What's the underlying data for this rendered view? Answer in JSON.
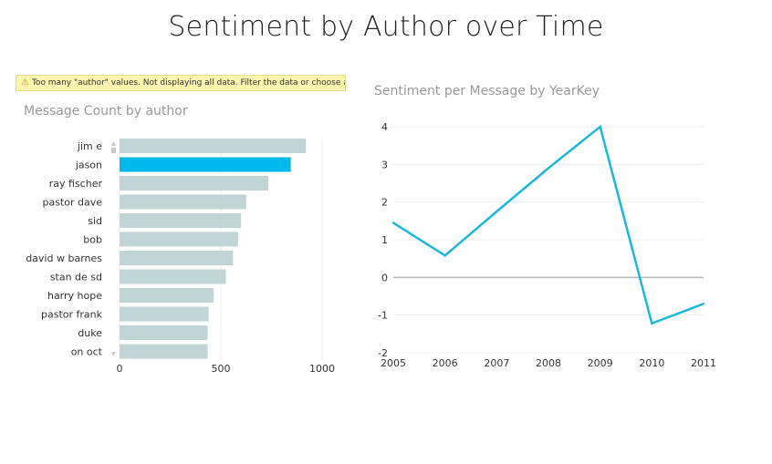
{
  "page": {
    "title": "Sentiment by Author over Time"
  },
  "warning": {
    "icon": "warning-icon",
    "text": "Too many \"author\" values.  Not displaying all data. Filter the data or choose an"
  },
  "colors": {
    "bar_default": "#c2d5d6",
    "bar_highlight": "#00b9ec",
    "line": "#1cb8dc",
    "gridline": "#eeeeee",
    "zero_line": "#b8b8b8"
  },
  "chart_data": [
    {
      "type": "bar",
      "orientation": "horizontal",
      "title": "Message Count by author",
      "categories": [
        "jim e",
        "jason",
        "ray fischer",
        "pastor dave",
        "sid",
        "bob",
        "david w barnes",
        "stan de sd",
        "harry hope",
        "pastor frank",
        "duke",
        "on oct"
      ],
      "values": [
        920,
        845,
        735,
        625,
        600,
        585,
        560,
        525,
        465,
        440,
        435,
        435
      ],
      "highlighted": "jason",
      "xlim": [
        0,
        1000
      ],
      "xticks": [
        "0",
        "500",
        "1000"
      ],
      "grid": true
    },
    {
      "type": "line",
      "title": "Sentiment per Message by YearKey",
      "x": [
        "2005",
        "2006",
        "2007",
        "2008",
        "2009",
        "2010",
        "2011"
      ],
      "series": [
        {
          "values": [
            1.45,
            0.58,
            1.75,
            2.9,
            4.0,
            -1.22,
            -0.7
          ]
        }
      ],
      "ylim": [
        -2,
        4
      ],
      "yticks": [
        "-2",
        "-1",
        "0",
        "1",
        "2",
        "3",
        "4"
      ],
      "grid": true
    }
  ]
}
